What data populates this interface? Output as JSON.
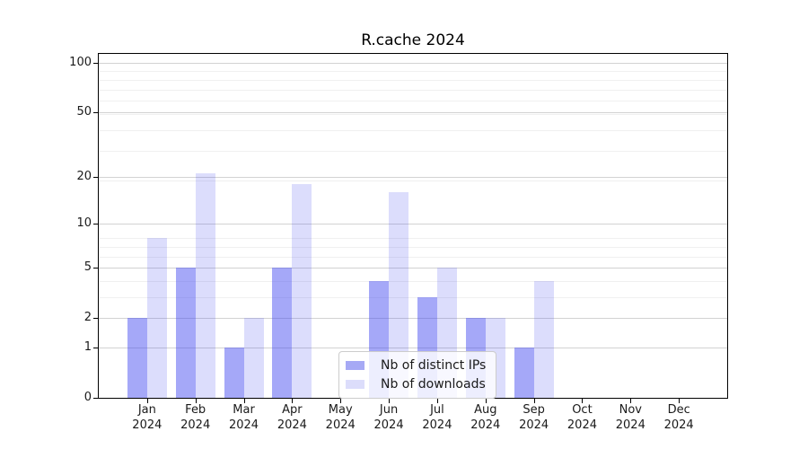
{
  "chart_data": {
    "type": "bar",
    "title": "R.cache 2024",
    "categories": [
      "Jan 2024",
      "Feb 2024",
      "Mar 2024",
      "Apr 2024",
      "May 2024",
      "Jun 2024",
      "Jul 2024",
      "Aug 2024",
      "Sep 2024",
      "Oct 2024",
      "Nov 2024",
      "Dec 2024"
    ],
    "series": [
      {
        "name": "Nb of distinct IPs",
        "values": [
          2,
          5,
          1,
          5,
          0,
          4,
          3,
          2,
          1,
          0,
          0,
          0
        ],
        "bar_color": "rgba(64,70,240,0.47)",
        "swatch_color": "#a6a9f5"
      },
      {
        "name": "Nb of downloads",
        "values": [
          8,
          21,
          2,
          18,
          0,
          16,
          5,
          2,
          4,
          0,
          0,
          0
        ],
        "bar_color": "rgba(64,70,240,0.185)",
        "swatch_color": "#dcddfb"
      }
    ],
    "y_axis": {
      "scale": "log10(value+1)",
      "ticks": [
        0,
        1,
        2,
        5,
        10,
        20,
        50,
        100
      ],
      "minor_gridlines": [
        3,
        4,
        6,
        7,
        8,
        19,
        29,
        39,
        49,
        59,
        69,
        79,
        89
      ],
      "ylim": [
        0,
        113
      ]
    },
    "x_axis": {
      "year": "2024"
    },
    "legend_position": "lower center",
    "grid": true,
    "colors": {
      "major_grid": "#d2d2d2",
      "minor_grid": "#f0f0f0",
      "axis": "#000000",
      "text": "#1a1a1a"
    }
  }
}
